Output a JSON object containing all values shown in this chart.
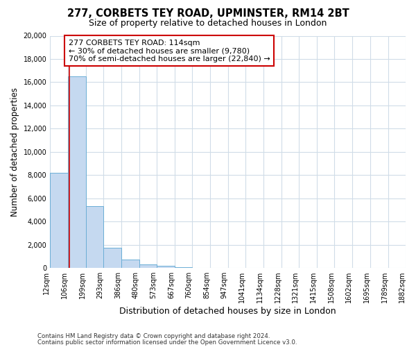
{
  "title1": "277, CORBETS TEY ROAD, UPMINSTER, RM14 2BT",
  "title2": "Size of property relative to detached houses in London",
  "xlabel": "Distribution of detached houses by size in London",
  "ylabel": "Number of detached properties",
  "bar_values": [
    8200,
    16500,
    5300,
    1750,
    750,
    300,
    200,
    90,
    0,
    0,
    0,
    0,
    0,
    0,
    0,
    0,
    0,
    0,
    0,
    0
  ],
  "bin_edges": [
    12,
    106,
    199,
    293,
    386,
    480,
    573,
    667,
    760,
    854,
    947,
    1041,
    1134,
    1228,
    1321,
    1415,
    1508,
    1602,
    1695,
    1789,
    1882
  ],
  "tick_labels": [
    "12sqm",
    "106sqm",
    "199sqm",
    "293sqm",
    "386sqm",
    "480sqm",
    "573sqm",
    "667sqm",
    "760sqm",
    "854sqm",
    "947sqm",
    "1041sqm",
    "1134sqm",
    "1228sqm",
    "1321sqm",
    "1415sqm",
    "1508sqm",
    "1602sqm",
    "1695sqm",
    "1789sqm",
    "1882sqm"
  ],
  "bar_color": "#c5d9f0",
  "bar_edge_color": "#6baed6",
  "vline_x": 114,
  "vline_color": "#cc0000",
  "annotation_line1": "277 CORBETS TEY ROAD: 114sqm",
  "annotation_line2": "← 30% of detached houses are smaller (9,780)",
  "annotation_line3": "70% of semi-detached houses are larger (22,840) →",
  "box_edge_color": "#cc0000",
  "ylim": [
    0,
    20000
  ],
  "yticks": [
    0,
    2000,
    4000,
    6000,
    8000,
    10000,
    12000,
    14000,
    16000,
    18000,
    20000
  ],
  "footnote1": "Contains HM Land Registry data © Crown copyright and database right 2024.",
  "footnote2": "Contains public sector information licensed under the Open Government Licence v3.0.",
  "bg_color": "#ffffff",
  "plot_bg_color": "#ffffff",
  "grid_color": "#d0dce8",
  "title_fontsize": 10.5,
  "subtitle_fontsize": 9,
  "tick_fontsize": 7,
  "ylabel_fontsize": 8.5,
  "xlabel_fontsize": 9,
  "annot_fontsize": 8
}
